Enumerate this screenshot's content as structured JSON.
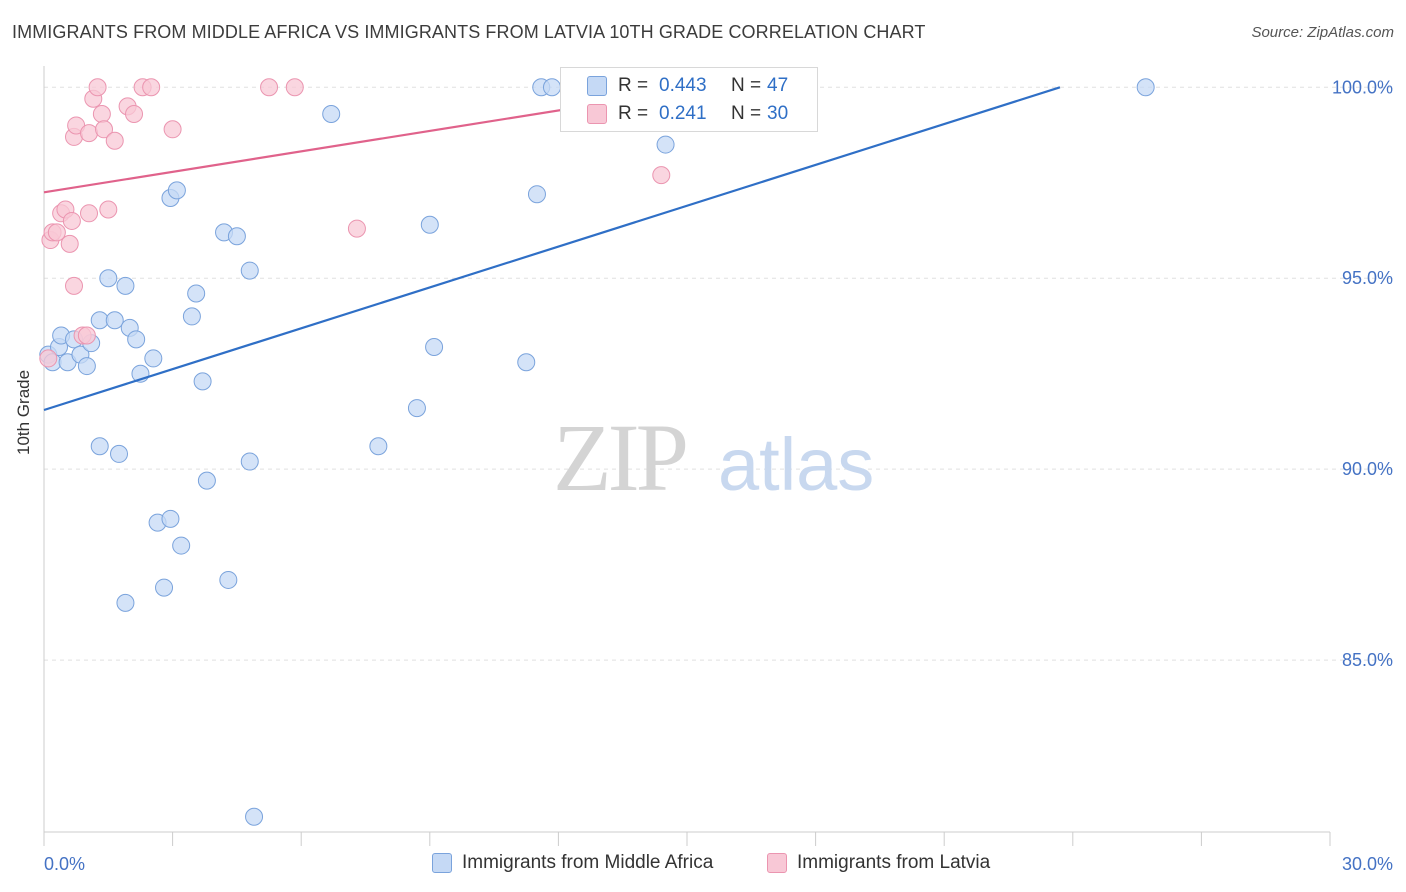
{
  "title": "IMMIGRANTS FROM MIDDLE AFRICA VS IMMIGRANTS FROM LATVIA 10TH GRADE CORRELATION CHART",
  "source": "Source: ZipAtlas.com",
  "watermark": {
    "zip": "ZIP",
    "atlas": "atlas"
  },
  "colors": {
    "blue": "#4472c4",
    "blue_fill": "#c5d9f5",
    "blue_line": "#2f6fc6",
    "pink": "#e8608a",
    "pink_fill": "#f8c8d6",
    "pink_line": "#e0628b",
    "grid": "#e0e0e0"
  },
  "stats": [
    {
      "r_label": "R =",
      "r_value": "0.443",
      "n_label": "N =",
      "n_value": "47"
    },
    {
      "r_label": "R =",
      "r_value": "0.241",
      "n_label": "N =",
      "n_value": "30"
    }
  ],
  "legend": [
    {
      "label": "Immigrants from Middle Africa"
    },
    {
      "label": "Immigrants from Latvia"
    }
  ],
  "chart_data": {
    "type": "scatter",
    "xlabel": "",
    "ylabel": "10th Grade",
    "xlim": [
      0.0,
      30.0
    ],
    "ylim": [
      80.5,
      100.4
    ],
    "x_tick_labels": [
      "0.0%",
      "30.0%"
    ],
    "y_ticks": [
      100.0,
      95.0,
      90.0,
      85.0
    ],
    "y_tick_labels": [
      "100.0%",
      "95.0%",
      "90.0%",
      "85.0%"
    ],
    "grid": true,
    "legend_position": "bottom",
    "series": [
      {
        "name": "Immigrants from Middle Africa",
        "color": "#4472c4",
        "points": [
          [
            0.1,
            93.0
          ],
          [
            0.2,
            92.8
          ],
          [
            0.35,
            93.2
          ],
          [
            0.4,
            93.5
          ],
          [
            0.55,
            92.8
          ],
          [
            0.7,
            93.4
          ],
          [
            0.85,
            93.0
          ],
          [
            1.0,
            92.7
          ],
          [
            1.1,
            93.3
          ],
          [
            1.3,
            93.9
          ],
          [
            1.5,
            95.0
          ],
          [
            1.65,
            93.9
          ],
          [
            1.9,
            94.8
          ],
          [
            2.0,
            93.7
          ],
          [
            2.15,
            93.4
          ],
          [
            2.25,
            92.5
          ],
          [
            2.55,
            92.9
          ],
          [
            2.95,
            97.1
          ],
          [
            3.1,
            97.3
          ],
          [
            3.45,
            94.0
          ],
          [
            3.55,
            94.6
          ],
          [
            3.7,
            92.3
          ],
          [
            4.2,
            96.2
          ],
          [
            4.5,
            96.1
          ],
          [
            4.8,
            95.2
          ],
          [
            6.7,
            99.3
          ],
          [
            9.0,
            96.4
          ],
          [
            9.1,
            93.2
          ],
          [
            11.25,
            92.8
          ],
          [
            11.5,
            97.2
          ],
          [
            11.6,
            100.0
          ],
          [
            11.85,
            100.0
          ],
          [
            14.5,
            98.5
          ],
          [
            25.7,
            100.0
          ],
          [
            1.3,
            90.6
          ],
          [
            1.75,
            90.4
          ],
          [
            3.8,
            89.7
          ],
          [
            4.8,
            90.2
          ],
          [
            8.7,
            91.6
          ],
          [
            7.8,
            90.6
          ],
          [
            2.65,
            88.6
          ],
          [
            2.95,
            88.7
          ],
          [
            3.2,
            88.0
          ],
          [
            2.8,
            86.9
          ],
          [
            4.3,
            87.1
          ],
          [
            1.9,
            86.5
          ],
          [
            4.9,
            80.9
          ]
        ]
      },
      {
        "name": "Immigrants from Latvia",
        "color": "#e8608a",
        "points": [
          [
            0.1,
            92.9
          ],
          [
            0.15,
            96.0
          ],
          [
            0.2,
            96.2
          ],
          [
            0.3,
            96.2
          ],
          [
            0.4,
            96.7
          ],
          [
            0.5,
            96.8
          ],
          [
            0.6,
            95.9
          ],
          [
            0.65,
            96.5
          ],
          [
            0.7,
            94.8
          ],
          [
            0.7,
            98.7
          ],
          [
            0.75,
            99.0
          ],
          [
            0.9,
            93.5
          ],
          [
            1.05,
            98.8
          ],
          [
            1.05,
            96.7
          ],
          [
            1.15,
            99.7
          ],
          [
            1.25,
            100.0
          ],
          [
            1.35,
            99.3
          ],
          [
            1.4,
            98.9
          ],
          [
            1.5,
            96.8
          ],
          [
            1.65,
            98.6
          ],
          [
            1.95,
            99.5
          ],
          [
            2.1,
            99.3
          ],
          [
            2.3,
            100.0
          ],
          [
            2.5,
            100.0
          ],
          [
            3.0,
            98.9
          ],
          [
            5.25,
            100.0
          ],
          [
            5.85,
            100.0
          ],
          [
            7.3,
            96.3
          ],
          [
            14.4,
            97.7
          ],
          [
            1.0,
            93.5
          ]
        ]
      }
    ],
    "trendlines": [
      {
        "series": "Immigrants from Middle Africa",
        "x": [
          0.0,
          23.7
        ],
        "y": [
          91.55,
          100.0
        ]
      },
      {
        "series": "Immigrants from Latvia",
        "x": [
          0.0,
          15.4
        ],
        "y": [
          97.25,
          100.0
        ]
      }
    ]
  }
}
